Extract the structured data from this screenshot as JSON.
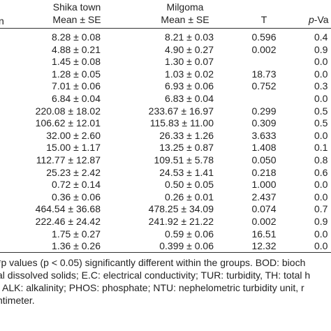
{
  "header": {
    "first": "n",
    "shika": "Shika town",
    "shika_sub": "Mean ± SE",
    "milgoma": "Milgoma",
    "milgoma_sub": "Mean ± SE",
    "t": "T",
    "p": "p",
    "p_rest": "-Va"
  },
  "rows": [
    {
      "shika": "8.28 ± 0.08",
      "milgoma": "8.21 ± 0.03",
      "t": "0.596",
      "p": "0.4"
    },
    {
      "shika": "4.88 ± 0.21",
      "milgoma": "4.90 ± 0.27",
      "t": "0.002",
      "p": "0.9"
    },
    {
      "shika": "1.45 ± 0.08",
      "milgoma": "1.30 ± 0.07",
      "p": "0.0"
    },
    {
      "shika": "1.28 ± 0.05",
      "milgoma": "1.03 ± 0.02",
      "t": "18.73",
      "p": "0.0"
    },
    {
      "shika": "7.01 ± 0.06",
      "milgoma": "6.93 ± 0.06",
      "t": "0.752",
      "p": "0.3"
    },
    {
      "shika": "6.84 ± 0.04",
      "milgoma": "6.83 ± 0.04",
      "p": "0.0"
    },
    {
      "shika": "220.08 ± 18.02",
      "milgoma": "233.67 ± 16.97",
      "t": "0.299",
      "p": "0.5"
    },
    {
      "shika": "106.62 ± 12.01",
      "milgoma": "115.83 ± 11.00",
      "t": "0.309",
      "p": "0.5"
    },
    {
      "shika": "32.00 ± 2.60",
      "milgoma": "26.33 ± 1.26",
      "t": "3.633",
      "p": "0.0"
    },
    {
      "shika": "15.00 ± 1.17",
      "milgoma": "13.25 ± 0.87",
      "t": "1.408",
      "p": "0.1"
    },
    {
      "shika": "112.77 ± 12.87",
      "milgoma": "109.51 ± 5.78",
      "t": "0.050",
      "p": "0.8"
    },
    {
      "shika": "25.23 ± 2.42",
      "milgoma": "24.53 ± 1.41",
      "t": "0.218",
      "p": "0.6"
    },
    {
      "shika": "0.72 ± 0.14",
      "milgoma": "0.50 ± 0.05",
      "t": "1.000",
      "p": "0.0"
    },
    {
      "shika": "0.36 ± 0.06",
      "milgoma": "0.26 ± 0.01",
      "t": "2.437",
      "p": "0.0"
    },
    {
      "shika": "464.54 ± 36.68",
      "milgoma": "478.25 ± 34.09",
      "t": "0.074",
      "p": "0.7"
    },
    {
      "shika": "222.46 ± 24.42",
      "milgoma": "241.92 ± 21.22",
      "t": "0.002",
      "p": "0.9"
    },
    {
      "shika": "1.75 ± 0.27",
      "milgoma": "0.59 ± 0.06",
      "t": "16.51",
      "p": "0.0"
    },
    {
      "shika": "1.36 ± 0.26",
      "milgoma": "0.399 ± 0.06",
      "t": "12.32",
      "p": "0.0"
    }
  ],
  "footnotes": [
    "*p values (p < 0.05) significantly different within the groups. BOD: bioch",
    "al dissolved solids; E.C: electrical conductivity; TUR: turbidity, TH: total h",
    "; ALK: alkalinity; PHOS: phosphate; NTU: nephelometric turbidity unit, r",
    "ntimeter."
  ]
}
